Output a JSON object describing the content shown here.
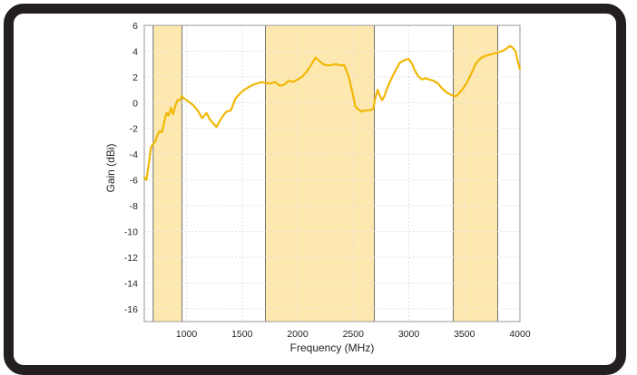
{
  "chart_data": {
    "type": "line",
    "title": "",
    "xlabel": "Frequency (MHz)",
    "ylabel": "Gain (dBi)",
    "xlim": [
      620,
      4000
    ],
    "ylim": [
      -17,
      6
    ],
    "xticks": [
      1000,
      1500,
      2000,
      2500,
      3000,
      3500,
      4000
    ],
    "xtick_labels": [
      "1000",
      "1500",
      "2000",
      "2500",
      "3000",
      "3500",
      "4000"
    ],
    "yticks": [
      6,
      4,
      2,
      0,
      -2,
      -4,
      -6,
      -8,
      -10,
      -12,
      -14,
      -16
    ],
    "ytick_labels": [
      "6",
      "4",
      "2",
      "0",
      "-2",
      "-4",
      "-6",
      "-8",
      "-10",
      "-12",
      "-14",
      "-16"
    ],
    "grid": true,
    "line_color": "#f2b705",
    "band_color": "#fde9b0",
    "bands": [
      {
        "from": 700,
        "to": 960
      },
      {
        "from": 1710,
        "to": 2690
      },
      {
        "from": 3400,
        "to": 3800
      }
    ],
    "series": [
      {
        "x": [
          620,
          640,
          660,
          680,
          700,
          720,
          740,
          760,
          780,
          800,
          820,
          840,
          860,
          880,
          900,
          920,
          940,
          960,
          980,
          1000,
          1030,
          1060,
          1100,
          1140,
          1180,
          1210,
          1240,
          1270,
          1300,
          1330,
          1360,
          1400,
          1440,
          1480,
          1520,
          1560,
          1600,
          1640,
          1680,
          1720,
          1760,
          1800,
          1840,
          1880,
          1920,
          1960,
          2000,
          2040,
          2080,
          2120,
          2160,
          2200,
          2230,
          2260,
          2300,
          2340,
          2380,
          2420,
          2460,
          2500,
          2520,
          2540,
          2560,
          2580,
          2600,
          2640,
          2680,
          2700,
          2720,
          2740,
          2760,
          2780,
          2800,
          2840,
          2880,
          2920,
          2960,
          3000,
          3030,
          3060,
          3090,
          3120,
          3150,
          3180,
          3220,
          3260,
          3300,
          3340,
          3380,
          3420,
          3440,
          3480,
          3520,
          3560,
          3600,
          3640,
          3680,
          3720,
          3760,
          3800,
          3840,
          3880,
          3910,
          3930,
          3960,
          3980,
          4000
        ],
        "y": [
          -5.8,
          -6.0,
          -4.8,
          -3.5,
          -3.2,
          -3.0,
          -2.5,
          -2.2,
          -2.3,
          -1.5,
          -0.8,
          -1.0,
          -0.4,
          -0.9,
          -0.2,
          0.2,
          0.2,
          0.5,
          0.3,
          0.2,
          0.0,
          -0.2,
          -0.6,
          -1.2,
          -0.8,
          -1.3,
          -1.6,
          -1.9,
          -1.4,
          -1.0,
          -0.7,
          -0.6,
          0.3,
          0.7,
          1.0,
          1.2,
          1.4,
          1.5,
          1.6,
          1.5,
          1.5,
          1.6,
          1.3,
          1.4,
          1.7,
          1.6,
          1.8,
          2.0,
          2.4,
          2.9,
          3.5,
          3.2,
          3.0,
          2.9,
          2.9,
          3.0,
          2.9,
          2.9,
          2.0,
          0.5,
          -0.3,
          -0.5,
          -0.6,
          -0.7,
          -0.6,
          -0.6,
          -0.5,
          0.4,
          1.0,
          0.5,
          0.2,
          0.5,
          1.0,
          1.8,
          2.5,
          3.1,
          3.3,
          3.4,
          3.0,
          2.4,
          2.0,
          1.8,
          1.9,
          1.8,
          1.7,
          1.5,
          1.1,
          0.8,
          0.6,
          0.5,
          0.6,
          1.0,
          1.5,
          2.2,
          3.0,
          3.4,
          3.6,
          3.7,
          3.8,
          3.9,
          4.0,
          4.2,
          4.4,
          4.3,
          4.0,
          3.2,
          2.6
        ]
      }
    ]
  }
}
